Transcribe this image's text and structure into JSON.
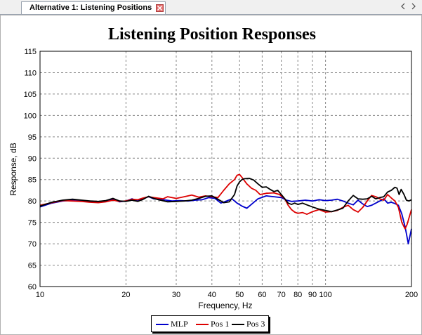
{
  "tab": {
    "label": "Alternative 1: Listening Positions"
  },
  "chart_data": {
    "type": "line",
    "title": "Listening Position Responses",
    "xlabel": "Frequency, Hz",
    "ylabel": "Response, dB",
    "xscale": "log",
    "xlim": [
      10,
      200
    ],
    "ylim": [
      60,
      115
    ],
    "xticks": [
      10,
      20,
      30,
      40,
      50,
      60,
      70,
      80,
      90,
      100,
      200
    ],
    "xtick_labels": [
      "10",
      "20",
      "30",
      "40",
      "50",
      "60",
      "70",
      "80",
      "90",
      "100",
      "200"
    ],
    "yticks": [
      60,
      65,
      70,
      75,
      80,
      85,
      90,
      95,
      100,
      105,
      110,
      115
    ],
    "ytick_labels": [
      "60",
      "65",
      "70",
      "75",
      "80",
      "85",
      "90",
      "95",
      "100",
      "105",
      "110",
      "115"
    ],
    "grid": true,
    "legend_position": "bottom",
    "series": [
      {
        "name": "MLP",
        "color": "#0000cc",
        "points": [
          [
            10,
            78.6
          ],
          [
            11,
            79.5
          ],
          [
            12,
            80
          ],
          [
            13,
            80.2
          ],
          [
            14,
            80.1
          ],
          [
            15,
            79.8
          ],
          [
            16,
            79.7
          ],
          [
            17,
            80
          ],
          [
            18,
            80.4
          ],
          [
            19,
            79.8
          ],
          [
            20,
            80
          ],
          [
            21,
            80.5
          ],
          [
            22,
            80
          ],
          [
            23,
            80.6
          ],
          [
            24,
            81
          ],
          [
            25,
            80.5
          ],
          [
            27,
            80.3
          ],
          [
            29,
            80
          ],
          [
            31,
            80.1
          ],
          [
            33,
            80
          ],
          [
            35,
            80.2
          ],
          [
            37,
            80.3
          ],
          [
            39,
            80.8
          ],
          [
            41,
            80.6
          ],
          [
            43,
            79.5
          ],
          [
            45,
            80
          ],
          [
            47,
            80.5
          ],
          [
            49,
            79.5
          ],
          [
            51,
            78.8
          ],
          [
            53,
            78.3
          ],
          [
            55,
            79.2
          ],
          [
            58,
            80.5
          ],
          [
            62,
            81.2
          ],
          [
            66,
            81
          ],
          [
            70,
            80.8
          ],
          [
            73,
            80.2
          ],
          [
            76,
            79.9
          ],
          [
            80,
            80
          ],
          [
            85,
            80.2
          ],
          [
            90,
            80
          ],
          [
            95,
            80.3
          ],
          [
            100,
            80.1
          ],
          [
            105,
            80.2
          ],
          [
            110,
            80.4
          ],
          [
            115,
            80
          ],
          [
            120,
            79.5
          ],
          [
            125,
            79.1
          ],
          [
            130,
            80.2
          ],
          [
            135,
            79.3
          ],
          [
            140,
            78.7
          ],
          [
            145,
            79
          ],
          [
            150,
            79.5
          ],
          [
            155,
            80
          ],
          [
            160,
            80.5
          ],
          [
            165,
            79.5
          ],
          [
            170,
            79.7
          ],
          [
            175,
            79.4
          ],
          [
            180,
            79
          ],
          [
            185,
            77
          ],
          [
            190,
            74
          ],
          [
            195,
            70
          ],
          [
            200,
            73.5
          ]
        ]
      },
      {
        "name": "Pos 1",
        "color": "#dd0000",
        "points": [
          [
            10,
            79
          ],
          [
            11,
            79.6
          ],
          [
            12,
            80.1
          ],
          [
            13,
            80
          ],
          [
            14,
            79.9
          ],
          [
            15,
            79.7
          ],
          [
            16,
            79.6
          ],
          [
            17,
            79.8
          ],
          [
            18,
            80.2
          ],
          [
            19,
            79.9
          ],
          [
            20,
            80
          ],
          [
            21,
            80.4
          ],
          [
            22,
            80.3
          ],
          [
            23,
            80.7
          ],
          [
            24,
            81
          ],
          [
            25,
            80.8
          ],
          [
            27,
            80.5
          ],
          [
            28,
            81
          ],
          [
            30,
            80.6
          ],
          [
            32,
            81
          ],
          [
            34,
            81.4
          ],
          [
            36,
            80.9
          ],
          [
            38,
            81.2
          ],
          [
            40,
            81
          ],
          [
            42,
            80.8
          ],
          [
            44,
            82.5
          ],
          [
            46,
            84
          ],
          [
            48,
            85
          ],
          [
            49,
            86
          ],
          [
            50,
            86.2
          ],
          [
            51,
            85.5
          ],
          [
            53,
            84
          ],
          [
            55,
            83
          ],
          [
            57,
            82.5
          ],
          [
            59,
            81.5
          ],
          [
            62,
            81.8
          ],
          [
            66,
            81.9
          ],
          [
            69,
            81.5
          ],
          [
            72,
            80.5
          ],
          [
            74,
            79
          ],
          [
            76,
            78
          ],
          [
            78,
            77.4
          ],
          [
            80,
            77.1
          ],
          [
            83,
            77.3
          ],
          [
            86,
            76.9
          ],
          [
            90,
            77.5
          ],
          [
            95,
            78
          ],
          [
            100,
            77.4
          ],
          [
            105,
            77.5
          ],
          [
            110,
            77.8
          ],
          [
            115,
            78.5
          ],
          [
            120,
            79
          ],
          [
            125,
            78
          ],
          [
            130,
            77.4
          ],
          [
            135,
            78.5
          ],
          [
            140,
            80
          ],
          [
            145,
            81.3
          ],
          [
            150,
            81
          ],
          [
            155,
            80.5
          ],
          [
            160,
            80.2
          ],
          [
            165,
            81.5
          ],
          [
            170,
            80.7
          ],
          [
            175,
            80
          ],
          [
            180,
            78.5
          ],
          [
            185,
            75
          ],
          [
            190,
            73.5
          ],
          [
            193,
            74.5
          ],
          [
            197,
            76.5
          ],
          [
            200,
            78
          ]
        ]
      },
      {
        "name": "Pos 3",
        "color": "#000000",
        "points": [
          [
            10,
            78.8
          ],
          [
            11,
            79.7
          ],
          [
            12,
            80.2
          ],
          [
            13,
            80.4
          ],
          [
            14,
            80.2
          ],
          [
            15,
            80
          ],
          [
            16,
            79.9
          ],
          [
            17,
            80.1
          ],
          [
            18,
            80.6
          ],
          [
            19,
            80
          ],
          [
            20,
            79.9
          ],
          [
            21,
            80.2
          ],
          [
            22,
            79.9
          ],
          [
            23,
            80.4
          ],
          [
            24,
            81.1
          ],
          [
            25,
            80.6
          ],
          [
            26,
            80.3
          ],
          [
            28,
            79.8
          ],
          [
            30,
            79.9
          ],
          [
            32,
            80
          ],
          [
            34,
            80.2
          ],
          [
            36,
            80.6
          ],
          [
            38,
            81.1
          ],
          [
            40,
            81.2
          ],
          [
            42,
            80.4
          ],
          [
            44,
            79.6
          ],
          [
            46,
            79.8
          ],
          [
            48,
            81.5
          ],
          [
            49,
            83.5
          ],
          [
            50,
            84.5
          ],
          [
            51,
            85
          ],
          [
            52,
            85.2
          ],
          [
            54,
            85.3
          ],
          [
            56,
            84.9
          ],
          [
            58,
            84
          ],
          [
            60,
            83.2
          ],
          [
            62,
            83.3
          ],
          [
            64,
            82.7
          ],
          [
            66,
            82.2
          ],
          [
            68,
            82.5
          ],
          [
            70,
            81.5
          ],
          [
            72,
            80.5
          ],
          [
            74,
            79.5
          ],
          [
            76,
            79.2
          ],
          [
            78,
            79.5
          ],
          [
            80,
            79.2
          ],
          [
            83,
            79.5
          ],
          [
            86,
            79.1
          ],
          [
            90,
            78.6
          ],
          [
            95,
            78.1
          ],
          [
            100,
            77.8
          ],
          [
            105,
            77.5
          ],
          [
            110,
            77.9
          ],
          [
            115,
            78.3
          ],
          [
            120,
            80
          ],
          [
            125,
            81.3
          ],
          [
            130,
            80.5
          ],
          [
            135,
            80.4
          ],
          [
            140,
            80.5
          ],
          [
            145,
            81.1
          ],
          [
            150,
            80.5
          ],
          [
            155,
            80.8
          ],
          [
            160,
            81
          ],
          [
            165,
            82.1
          ],
          [
            170,
            82.5
          ],
          [
            175,
            83.2
          ],
          [
            178,
            83
          ],
          [
            181,
            81.5
          ],
          [
            184,
            82.7
          ],
          [
            188,
            81.6
          ],
          [
            192,
            80.2
          ],
          [
            196,
            80
          ],
          [
            200,
            80.3
          ]
        ]
      }
    ]
  }
}
